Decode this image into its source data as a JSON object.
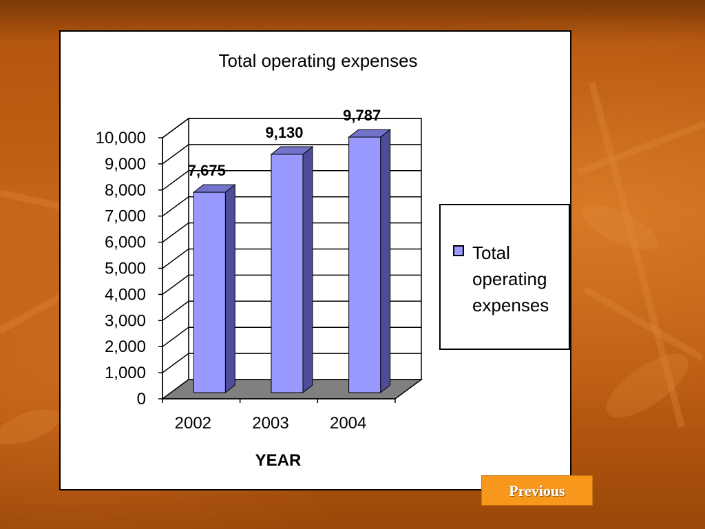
{
  "navigation": {
    "previous_label": "Previous"
  },
  "colors": {
    "bar_front": "#9999ff",
    "bar_side": "#4d4d99",
    "bar_top": "#7373cc",
    "floor": "#808080"
  },
  "chart_data": {
    "type": "bar",
    "title": "Total operating expenses",
    "xlabel": "YEAR",
    "ylabel": "",
    "categories": [
      "2002",
      "2003",
      "2004"
    ],
    "series": [
      {
        "name": "Total operating expenses",
        "values": [
          7675,
          9130,
          9787
        ],
        "data_labels": [
          "7,675",
          "9,130",
          "9,787"
        ]
      }
    ],
    "ylim": [
      0,
      10000
    ],
    "yticks": [
      0,
      1000,
      2000,
      3000,
      4000,
      5000,
      6000,
      7000,
      8000,
      9000,
      10000
    ],
    "ytick_labels": [
      "0",
      "1,000",
      "2,000",
      "3,000",
      "4,000",
      "5,000",
      "6,000",
      "7,000",
      "8,000",
      "9,000",
      "10,000"
    ],
    "grid": true,
    "legend_position": "right",
    "projection": "3d-clustered-column"
  }
}
